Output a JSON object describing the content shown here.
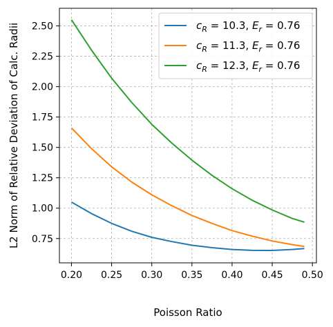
{
  "chart_data": {
    "type": "line",
    "xlabel": "Poisson Ratio",
    "ylabel": "L2 Norm of Relative Deviation of Calc. Radii",
    "xlim": [
      0.185,
      0.505
    ],
    "ylim": [
      0.55,
      2.645
    ],
    "xticks": [
      0.2,
      0.25,
      0.3,
      0.35,
      0.4,
      0.45,
      0.5
    ],
    "xtick_labels": [
      "0.20",
      "0.25",
      "0.30",
      "0.35",
      "0.40",
      "0.45",
      "0.50"
    ],
    "yticks": [
      0.75,
      1.0,
      1.25,
      1.5,
      1.75,
      2.0,
      2.25,
      2.5
    ],
    "ytick_labels": [
      "0.75",
      "1.00",
      "1.25",
      "1.50",
      "1.75",
      "2.00",
      "2.25",
      "2.50"
    ],
    "grid": true,
    "legend_position": "top-right",
    "x": [
      0.2,
      0.225,
      0.25,
      0.275,
      0.3,
      0.325,
      0.35,
      0.375,
      0.4,
      0.425,
      0.45,
      0.475,
      0.49
    ],
    "series": [
      {
        "name_parts": {
          "c_sym": "c",
          "c_sub": "R",
          "c_val": " = 10.3, ",
          "e_sym": "E",
          "e_sub": "r",
          "e_val": " = 0.76"
        },
        "color": "#1f77b4",
        "values": [
          1.05,
          0.955,
          0.875,
          0.81,
          0.76,
          0.725,
          0.695,
          0.675,
          0.66,
          0.653,
          0.652,
          0.66,
          0.668
        ]
      },
      {
        "name_parts": {
          "c_sym": "c",
          "c_sub": "R",
          "c_val": " = 11.3, ",
          "e_sym": "E",
          "e_sub": "r",
          "e_val": " = 0.76"
        },
        "color": "#ff7f0e",
        "values": [
          1.66,
          1.49,
          1.34,
          1.215,
          1.11,
          1.02,
          0.94,
          0.875,
          0.815,
          0.77,
          0.73,
          0.7,
          0.685
        ]
      },
      {
        "name_parts": {
          "c_sym": "c",
          "c_sub": "R",
          "c_val": " = 12.3, ",
          "e_sym": "E",
          "e_sub": "r",
          "e_val": " = 0.76"
        },
        "color": "#2ca02c",
        "values": [
          2.55,
          2.3,
          2.07,
          1.87,
          1.69,
          1.535,
          1.395,
          1.27,
          1.16,
          1.065,
          0.985,
          0.915,
          0.885
        ]
      }
    ]
  }
}
